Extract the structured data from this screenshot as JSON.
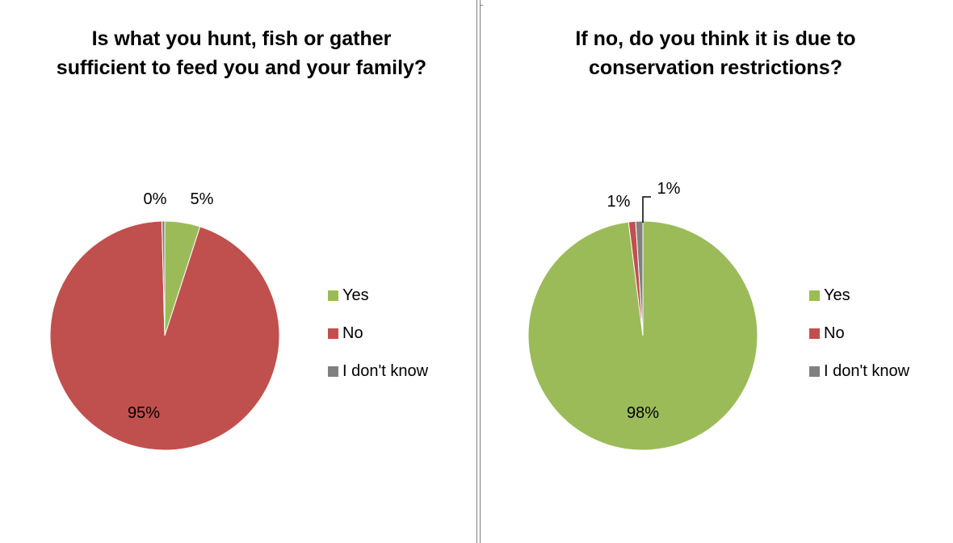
{
  "chart_data": [
    {
      "type": "pie",
      "title": "Is what you hunt, fish or gather sufficient to feed you and your family?",
      "categories": [
        "Yes",
        "No",
        "I don't know"
      ],
      "values": [
        5,
        95,
        0.4
      ],
      "data_labels": [
        "5%",
        "95%",
        "0%"
      ],
      "colors": [
        "#9bbb59",
        "#c0504d",
        "#808080"
      ],
      "legend_position": "right",
      "start_angle_deg": 0
    },
    {
      "type": "pie",
      "title": "If no, do you think it is due to conservation restrictions?",
      "categories": [
        "Yes",
        "No",
        "I don't know"
      ],
      "values": [
        98,
        1,
        1
      ],
      "data_labels": [
        "98%",
        "1%",
        "1%"
      ],
      "colors": [
        "#9bbb59",
        "#c0504d",
        "#808080"
      ],
      "legend_position": "right",
      "start_angle_deg": 0
    }
  ]
}
